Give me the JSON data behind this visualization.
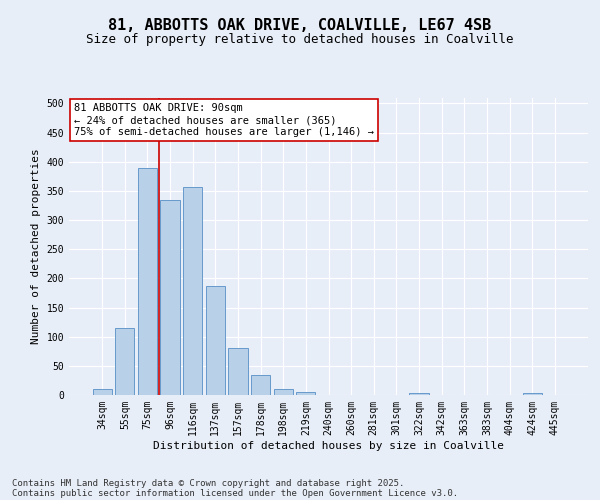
{
  "title": "81, ABBOTTS OAK DRIVE, COALVILLE, LE67 4SB",
  "subtitle": "Size of property relative to detached houses in Coalville",
  "xlabel": "Distribution of detached houses by size in Coalville",
  "ylabel": "Number of detached properties",
  "categories": [
    "34sqm",
    "55sqm",
    "75sqm",
    "96sqm",
    "116sqm",
    "137sqm",
    "157sqm",
    "178sqm",
    "198sqm",
    "219sqm",
    "240sqm",
    "260sqm",
    "281sqm",
    "301sqm",
    "322sqm",
    "342sqm",
    "363sqm",
    "383sqm",
    "404sqm",
    "424sqm",
    "445sqm"
  ],
  "values": [
    10,
    115,
    390,
    335,
    357,
    187,
    80,
    35,
    10,
    6,
    0,
    0,
    0,
    0,
    3,
    0,
    0,
    0,
    0,
    3,
    0
  ],
  "bar_color": "#b8d0e8",
  "bar_edge_color": "#6699cc",
  "vline_x_index": 2,
  "vline_color": "#cc0000",
  "annotation_text": "81 ABBOTTS OAK DRIVE: 90sqm\n← 24% of detached houses are smaller (365)\n75% of semi-detached houses are larger (1,146) →",
  "annotation_box_facecolor": "#ffffff",
  "annotation_box_edgecolor": "#cc0000",
  "ylim": [
    0,
    510
  ],
  "yticks": [
    0,
    50,
    100,
    150,
    200,
    250,
    300,
    350,
    400,
    450,
    500
  ],
  "background_color": "#e8eef8",
  "grid_color": "#ffffff",
  "footer_line1": "Contains HM Land Registry data © Crown copyright and database right 2025.",
  "footer_line2": "Contains public sector information licensed under the Open Government Licence v3.0.",
  "title_fontsize": 11,
  "subtitle_fontsize": 9,
  "axis_label_fontsize": 8,
  "tick_fontsize": 7,
  "annotation_fontsize": 7.5,
  "footer_fontsize": 6.5
}
